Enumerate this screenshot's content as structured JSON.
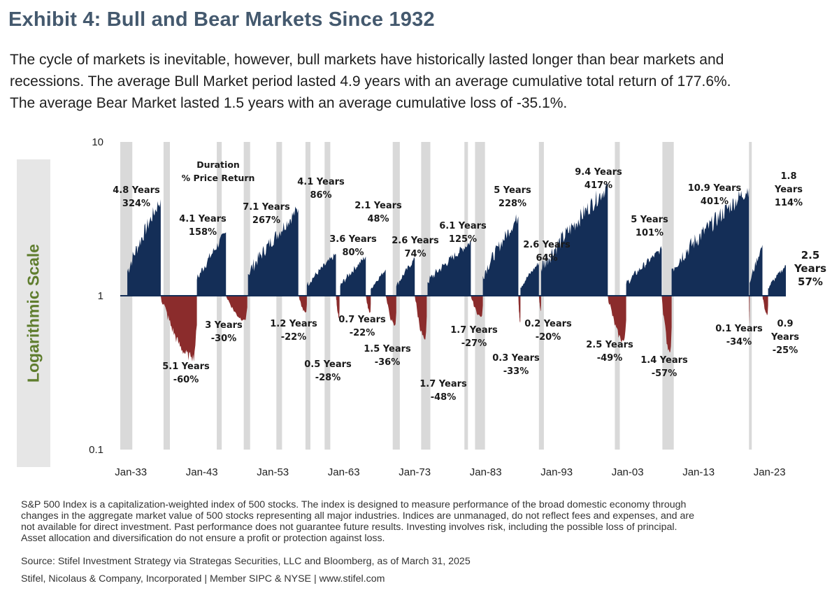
{
  "title": "Exhibit 4: Bull and Bear Markets Since 1932",
  "subtitle_lines": [
    "The cycle of markets is inevitable, however, bull markets have historically lasted longer than bear markets and",
    "recessions. The average Bull Market period lasted 4.9 years with an average cumulative total return of 177.6%.",
    "The average Bear Market lasted 1.5 years with an average cumulative loss of -35.1%."
  ],
  "y_axis_label": "Logarithmic Scale",
  "chart_data": {
    "type": "area",
    "title": "Bull and Bear Markets Since 1932",
    "ylabel": "Logarithmic Scale",
    "yscale": "log",
    "ylim": [
      0.1,
      10
    ],
    "yticks": [
      {
        "value": 10,
        "label": "10"
      },
      {
        "value": 1,
        "label": "1"
      },
      {
        "value": 0.1,
        "label": "0.1"
      }
    ],
    "xlim": [
      1931.5,
      2025.3
    ],
    "xticks": [
      {
        "year": 1933.0,
        "label": "Jan-33"
      },
      {
        "year": 1943.0,
        "label": "Jan-43"
      },
      {
        "year": 1953.0,
        "label": "Jan-53"
      },
      {
        "year": 1963.0,
        "label": "Jan-63"
      },
      {
        "year": 1973.0,
        "label": "Jan-73"
      },
      {
        "year": 1983.0,
        "label": "Jan-83"
      },
      {
        "year": 1993.0,
        "label": "Jan-93"
      },
      {
        "year": 2003.0,
        "label": "Jan-03"
      },
      {
        "year": 2013.0,
        "label": "Jan-13"
      },
      {
        "year": 2023.0,
        "label": "Jan-23"
      }
    ],
    "legend_note": [
      "Duration",
      "% Price Return"
    ],
    "colors": {
      "bull": "#142e57",
      "bear": "#8b2c2c",
      "recession": "#d9d9d9"
    },
    "recessions": [
      [
        1931.5,
        1933.2
      ],
      [
        1937.6,
        1938.5
      ],
      [
        1945.1,
        1945.8
      ],
      [
        1948.9,
        1949.8
      ],
      [
        1953.5,
        1954.3
      ],
      [
        1957.6,
        1958.3
      ],
      [
        1960.3,
        1961.1
      ],
      [
        1969.9,
        1970.9
      ],
      [
        1973.9,
        1975.2
      ],
      [
        1980.0,
        1980.5
      ],
      [
        1981.5,
        1982.9
      ],
      [
        1990.5,
        1991.2
      ],
      [
        2001.2,
        2001.9
      ],
      [
        2007.9,
        2009.5
      ],
      [
        2020.1,
        2020.4
      ]
    ],
    "bull_markets": [
      {
        "start": 1932.5,
        "end": 1937.2,
        "peak": 4.24,
        "duration": "4.8 Years",
        "return": "324%"
      },
      {
        "start": 1942.3,
        "end": 1946.4,
        "peak": 2.58,
        "duration": "4.1 Years",
        "return": "158%"
      },
      {
        "start": 1949.5,
        "end": 1956.6,
        "peak": 3.67,
        "duration": "7.1 Years",
        "return": "267%"
      },
      {
        "start": 1957.8,
        "end": 1961.9,
        "peak": 1.86,
        "duration": "4.1 Years",
        "return": "86%"
      },
      {
        "start": 1962.5,
        "end": 1966.1,
        "peak": 1.8,
        "duration": "3.6 Years",
        "return": "80%"
      },
      {
        "start": 1966.8,
        "end": 1968.9,
        "peak": 1.48,
        "duration": "2.1 Years",
        "return": "48%"
      },
      {
        "start": 1970.4,
        "end": 1973.0,
        "peak": 1.74,
        "duration": "2.6 Years",
        "return": "74%"
      },
      {
        "start": 1974.8,
        "end": 1980.9,
        "peak": 2.25,
        "duration": "6.1 Years",
        "return": "125%"
      },
      {
        "start": 1982.6,
        "end": 1987.6,
        "peak": 3.28,
        "duration": "5 Years",
        "return": "228%"
      },
      {
        "start": 1987.9,
        "end": 1990.5,
        "peak": 1.64,
        "duration": "2.6 Years",
        "return": "64%"
      },
      {
        "start": 1990.8,
        "end": 2000.2,
        "peak": 5.17,
        "duration": "9.4 Years",
        "return": "417%"
      },
      {
        "start": 2002.8,
        "end": 2007.8,
        "peak": 2.01,
        "duration": "5 Years",
        "return": "101%"
      },
      {
        "start": 2009.2,
        "end": 2020.1,
        "peak": 5.01,
        "duration": "10.9 Years",
        "return": "401%"
      },
      {
        "start": 2020.2,
        "end": 2022.0,
        "peak": 2.14,
        "duration": "1.8 Years",
        "return": "114%"
      },
      {
        "start": 2022.8,
        "end": 2025.3,
        "peak": 1.57,
        "duration": "2.5 Years",
        "return": "57%"
      }
    ],
    "bear_markets": [
      {
        "start": 1937.2,
        "end": 1942.3,
        "trough": 0.4,
        "duration": "5.1 Years",
        "return": "-60%"
      },
      {
        "start": 1946.4,
        "end": 1949.4,
        "trough": 0.7,
        "duration": "3 Years",
        "return": "-30%"
      },
      {
        "start": 1956.6,
        "end": 1957.8,
        "trough": 0.78,
        "duration": "1.2 Years",
        "return": "-22%"
      },
      {
        "start": 1961.9,
        "end": 1962.4,
        "trough": 0.72,
        "duration": "0.5 Years",
        "return": "-28%"
      },
      {
        "start": 1966.1,
        "end": 1966.8,
        "trough": 0.78,
        "duration": "0.7 Years",
        "return": "-22%"
      },
      {
        "start": 1968.9,
        "end": 1970.4,
        "trough": 0.64,
        "duration": "1.5 Years",
        "return": "-36%"
      },
      {
        "start": 1973.0,
        "end": 1974.7,
        "trough": 0.52,
        "duration": "1.7 Years",
        "return": "-48%"
      },
      {
        "start": 1980.9,
        "end": 1982.6,
        "trough": 0.73,
        "duration": "1.7 Years",
        "return": "-27%"
      },
      {
        "start": 1987.6,
        "end": 1987.9,
        "trough": 0.67,
        "duration": "0.3 Years",
        "return": "-33%"
      },
      {
        "start": 1990.5,
        "end": 1990.8,
        "trough": 0.8,
        "duration": "0.2 Years",
        "return": "-20%"
      },
      {
        "start": 2000.2,
        "end": 2002.8,
        "trough": 0.51,
        "duration": "2.5 Years",
        "return": "-49%"
      },
      {
        "start": 2007.8,
        "end": 2009.2,
        "trough": 0.43,
        "duration": "1.4 Years",
        "return": "-57%"
      },
      {
        "start": 2020.1,
        "end": 2020.2,
        "trough": 0.66,
        "duration": "0.1 Years",
        "return": "-34%"
      },
      {
        "start": 2022.0,
        "end": 2022.8,
        "trough": 0.75,
        "duration": "0.9 Years",
        "return": "-25%"
      }
    ]
  },
  "footer_lines": [
    "S&P 500 Index is a capitalization-weighted index of 500 stocks. The index is designed to measure performance of the broad domestic economy through",
    "changes in the aggregate market value of 500 stocks representing all major industries. Indices are unmanaged, do not reflect fees and expenses, and are",
    "not available for direct investment. Past performance does not guarantee future results. Investing involves risk, including the possible loss of principal.",
    "Asset allocation and diversification do not ensure a profit or protection against loss."
  ],
  "source": "Source: Stifel Investment Strategy via Strategas Securities, LLC  and Bloomberg, as of March 31, 2025",
  "company": "Stifel, Nicolaus & Company, Incorporated | Member SIPC & NYSE | www.stifel.com"
}
